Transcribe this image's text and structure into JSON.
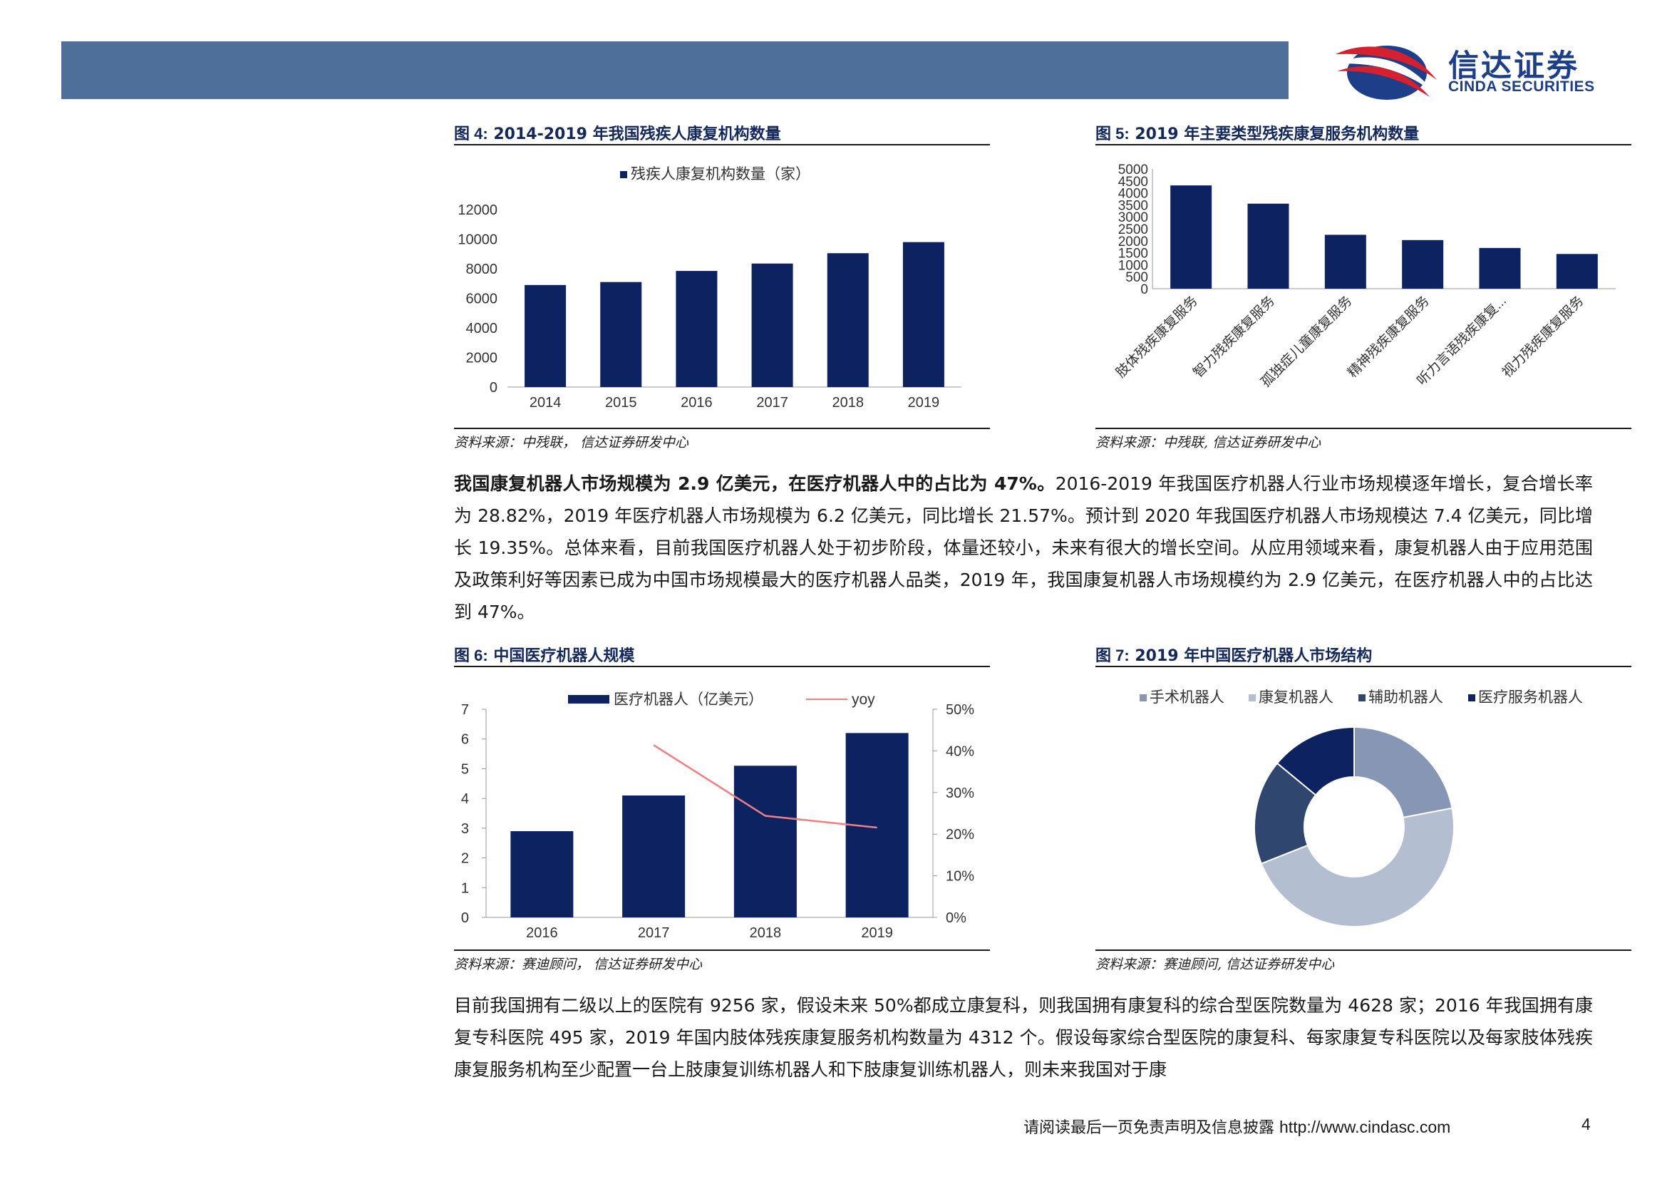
{
  "brand": {
    "name_cn": "信达证券",
    "name_en": "CINDA SECURITIES",
    "colors": {
      "bar": "#4d6f9a",
      "navy": "#1d3f8a",
      "red": "#d6202f"
    }
  },
  "figures": {
    "fig4": {
      "label": "图 4:",
      "title": "2014-2019 年我国残疾人康复机构数量",
      "source": "资料来源：中残联，  信达证券研发中心"
    },
    "fig5": {
      "label": "图 5:",
      "title": "2019 年主要类型残疾康复服务机构数量",
      "source": "资料来源：中残联, 信达证券研发中心"
    },
    "fig6": {
      "label": "图 6:",
      "title": "中国医疗机器人规模",
      "source": "资料来源：赛迪顾问，  信达证券研发中心"
    },
    "fig7": {
      "label": "图 7:",
      "title": "2019 年中国医疗机器人市场结构",
      "source": "资料来源：赛迪顾问, 信达证券研发中心"
    }
  },
  "paragraphs": {
    "p1_bold": "我国康复机器人市场规模为 2.9 亿美元，在医疗机器人中的占比为 47%。",
    "p1_rest": "2016-2019 年我国医疗机器人行业市场规模逐年增长，复合增长率为 28.82%，2019 年医疗机器人市场规模为 6.2 亿美元，同比增长 21.57%。预计到 2020 年我国医疗机器人市场规模达 7.4 亿美元，同比增长 19.35%。总体来看，目前我国医疗机器人处于初步阶段，体量还较小，未来有很大的增长空间。从应用领域来看，康复机器人由于应用范围及政策利好等因素已成为中国市场规模最大的医疗机器人品类，2019 年，我国康复机器人市场规模约为 2.9 亿美元，在医疗机器人中的占比达到 47%。",
    "p2": "目前我国拥有二级以上的医院有 9256 家，假设未来 50%都成立康复科，则我国拥有康复科的综合型医院数量为 4628 家；2016 年我国拥有康复专科医院 495 家，2019 年国内肢体残疾康复服务机构数量为 4312 个。假设每家综合型医院的康复科、每家康复专科医院以及每家肢体残疾康复服务机构至少配置一台上肢康复训练机器人和下肢康复训练机器人，则未来我国对于康"
  },
  "footer": {
    "disclaimer": "请阅读最后一页免责声明及信息披露",
    "url": "http://www.cindasc.com",
    "page": "4"
  },
  "chart_data": [
    {
      "id": "fig4",
      "type": "bar",
      "legend": "残疾人康复机构数量（家）",
      "legend_position": "top",
      "categories": [
        "2014",
        "2015",
        "2016",
        "2017",
        "2018",
        "2019"
      ],
      "values": [
        6900,
        7100,
        7850,
        8350,
        9050,
        9800
      ],
      "ylim": [
        0,
        12000
      ],
      "yticks": [
        0,
        2000,
        4000,
        6000,
        8000,
        10000,
        12000
      ],
      "color": "#0d2260"
    },
    {
      "id": "fig5",
      "type": "bar",
      "categories": [
        "肢体残疾康复服务",
        "智力残疾康复服务",
        "孤独症儿童康复服务",
        "精神残疾康复服务",
        "听力言语残疾康复...",
        "视力残疾康复服务"
      ],
      "values": [
        4312,
        3550,
        2250,
        2030,
        1700,
        1450
      ],
      "ylim": [
        0,
        5000
      ],
      "yticks": [
        0,
        500,
        1000,
        1500,
        2000,
        2500,
        3000,
        3500,
        4000,
        4500,
        5000
      ],
      "color": "#0d2260"
    },
    {
      "id": "fig6",
      "type": "bar+line",
      "categories": [
        "2016",
        "2017",
        "2018",
        "2019"
      ],
      "series": [
        {
          "name": "医疗机器人（亿美元）",
          "type": "bar",
          "axis": "left",
          "values": [
            2.9,
            4.1,
            5.1,
            6.2
          ],
          "color": "#0d2260"
        },
        {
          "name": "yoy",
          "type": "line",
          "axis": "right",
          "values": [
            null,
            41.4,
            24.4,
            21.57
          ],
          "color": "#f08080"
        }
      ],
      "ylim_left": [
        0,
        7
      ],
      "yticks_left": [
        0,
        1,
        2,
        3,
        4,
        5,
        6,
        7
      ],
      "ylim_right": [
        0,
        50
      ],
      "yticks_right": [
        "0%",
        "10%",
        "20%",
        "30%",
        "40%",
        "50%"
      ],
      "legend_position": "top"
    },
    {
      "id": "fig7",
      "type": "pie",
      "legend_position": "top",
      "labels": [
        "手术机器人",
        "康复机器人",
        "辅助机器人",
        "医疗服务机器人"
      ],
      "values": [
        22,
        47,
        17,
        14
      ],
      "colors": [
        "#8696b4",
        "#b3bed0",
        "#2f466f",
        "#0d2260"
      ]
    }
  ]
}
